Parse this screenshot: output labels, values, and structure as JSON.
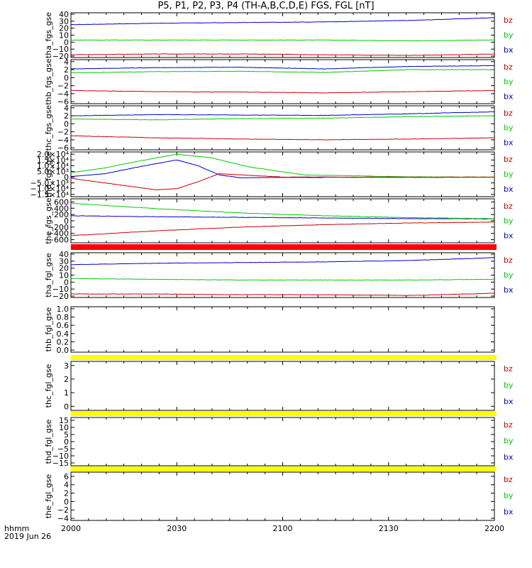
{
  "title": "P5, P1, P2, P3, P4 (TH-A,B,C,D,E) FGS, FGL [nT]",
  "x_axis": {
    "label": "hhmm",
    "date": "2019 Jun 26",
    "ticks": [
      "2000",
      "2030",
      "2100",
      "2130",
      "2200"
    ]
  },
  "colors": {
    "bz": "#cc0000",
    "by": "#00cc00",
    "bx": "#0000cc",
    "bar_red": "#ff0000",
    "bar_yellow": "#ffff00"
  },
  "chart_data": [
    {
      "type": "line",
      "ylabel": "tha_fgs_gse",
      "yticks": [
        "40",
        "30",
        "20",
        "10",
        "0",
        "−10",
        "−20"
      ],
      "yrange": [
        -22,
        42
      ],
      "legend": [
        "bz",
        "by",
        "bx"
      ],
      "series": [
        {
          "name": "bx",
          "x": [
            0,
            20,
            40,
            60,
            80,
            100
          ],
          "y": [
            25,
            27,
            28,
            29,
            31,
            35
          ]
        },
        {
          "name": "by",
          "x": [
            0,
            20,
            40,
            60,
            80,
            100
          ],
          "y": [
            3,
            3,
            3,
            3,
            2,
            3
          ]
        },
        {
          "name": "bz",
          "x": [
            0,
            20,
            40,
            60,
            80,
            100
          ],
          "y": [
            -18,
            -17,
            -17,
            -18,
            -19,
            -17
          ]
        }
      ]
    },
    {
      "type": "line",
      "ylabel": "thb_fgs_gse",
      "yticks": [
        "4",
        "2",
        "0",
        "−2",
        "−4",
        "−6"
      ],
      "yrange": [
        -6.5,
        4.5
      ],
      "legend": [
        "bz",
        "by",
        "bx"
      ],
      "series": [
        {
          "name": "bx",
          "x": [
            0,
            20,
            40,
            60,
            80,
            100
          ],
          "y": [
            2.2,
            2.5,
            2.6,
            2.2,
            2.8,
            3.0
          ]
        },
        {
          "name": "by",
          "x": [
            0,
            20,
            40,
            60,
            80,
            100
          ],
          "y": [
            1.2,
            1.5,
            1.6,
            1.3,
            2.0,
            2.0
          ]
        },
        {
          "name": "bz",
          "x": [
            0,
            20,
            40,
            60,
            80,
            100
          ],
          "y": [
            -3.2,
            -3.5,
            -3.6,
            -3.8,
            -3.5,
            -3.2
          ]
        }
      ]
    },
    {
      "type": "line",
      "ylabel": "thc_fgs_gse",
      "yticks": [
        "4",
        "2",
        "0",
        "−2",
        "−4",
        "−6"
      ],
      "yrange": [
        -6.5,
        4.5
      ],
      "legend": [
        "bz",
        "by",
        "bx"
      ],
      "series": [
        {
          "name": "bx",
          "x": [
            0,
            20,
            40,
            60,
            80,
            100
          ],
          "y": [
            2.0,
            2.3,
            2.2,
            2.1,
            2.5,
            3.0
          ]
        },
        {
          "name": "by",
          "x": [
            0,
            20,
            40,
            60,
            80,
            100
          ],
          "y": [
            1.2,
            1.0,
            1.3,
            1.4,
            1.8,
            2.0
          ]
        },
        {
          "name": "bz",
          "x": [
            0,
            20,
            40,
            60,
            80,
            100
          ],
          "y": [
            -3.0,
            -3.5,
            -3.8,
            -4.0,
            -3.8,
            -3.5
          ]
        }
      ]
    },
    {
      "type": "line",
      "ylabel": "thd_fgs_gse",
      "yticks": [
        "2.0×10⁴",
        "1.5×10⁴",
        "1.0×10⁴",
        "5.0×10³",
        "0",
        "−5.0×10³",
        "−1.0×10⁴",
        "−1.5×10⁴"
      ],
      "yrange": [
        -17000,
        22000
      ],
      "legend": [
        "bz",
        "by",
        "bx"
      ],
      "series": [
        {
          "name": "bx",
          "x": [
            0,
            8,
            16,
            25,
            30,
            35,
            40,
            50,
            100
          ],
          "y": [
            600,
            3000,
            9000,
            15000,
            10000,
            2000,
            -500,
            -200,
            0
          ]
        },
        {
          "name": "by",
          "x": [
            0,
            8,
            16,
            25,
            33,
            42,
            55,
            80,
            100
          ],
          "y": [
            4000,
            8000,
            14000,
            20000,
            17000,
            9000,
            2000,
            300,
            100
          ]
        },
        {
          "name": "bz",
          "x": [
            0,
            10,
            20,
            25,
            30,
            35,
            40,
            50,
            100
          ],
          "y": [
            -1000,
            -6000,
            -11000,
            -10000,
            -4000,
            3000,
            2000,
            100,
            0
          ]
        }
      ]
    },
    {
      "type": "line",
      "ylabel": "the_fgs_gse",
      "yticks": [
        "600",
        "400",
        "200",
        "0",
        "−200",
        "−400",
        "−600"
      ],
      "yrange": [
        -700,
        700
      ],
      "legend": [
        "bz",
        "by",
        "bx"
      ],
      "series": [
        {
          "name": "bx",
          "x": [
            0,
            20,
            40,
            60,
            80,
            100
          ],
          "y": [
            160,
            130,
            110,
            90,
            70,
            60
          ]
        },
        {
          "name": "by",
          "x": [
            0,
            20,
            40,
            60,
            80,
            100
          ],
          "y": [
            560,
            390,
            250,
            160,
            100,
            70
          ]
        },
        {
          "name": "bz",
          "x": [
            0,
            20,
            40,
            60,
            80,
            100
          ],
          "y": [
            -470,
            -320,
            -200,
            -120,
            -70,
            -40
          ]
        }
      ]
    },
    {
      "type": "line",
      "ylabel": "tha_fgl_gse",
      "yticks": [
        "40",
        "30",
        "20",
        "10",
        "0",
        "−10",
        "−20"
      ],
      "yrange": [
        -22,
        42
      ],
      "legend": [
        "bz",
        "by",
        "bx"
      ],
      "series": [
        {
          "name": "bx",
          "x": [
            0,
            20,
            40,
            60,
            80,
            100
          ],
          "y": [
            25,
            27,
            28,
            29,
            31,
            35
          ]
        },
        {
          "name": "by",
          "x": [
            0,
            20,
            40,
            60,
            80,
            100
          ],
          "y": [
            5,
            4,
            3,
            3,
            3,
            4
          ]
        },
        {
          "name": "bz",
          "x": [
            0,
            20,
            40,
            60,
            80,
            100
          ],
          "y": [
            -17,
            -17,
            -18,
            -18,
            -19,
            -16
          ]
        }
      ]
    },
    {
      "type": "line",
      "ylabel": "thb_fgl_gse",
      "yticks": [
        "1.0",
        "0.8",
        "0.6",
        "0.4",
        "0.2",
        "0.0"
      ],
      "yrange": [
        -0.05,
        1.05
      ],
      "legend": [],
      "series": []
    },
    {
      "type": "line",
      "ylabel": "thc_fgl_gse",
      "yticks": [
        "3",
        "2",
        "1",
        "0"
      ],
      "yrange": [
        -0.3,
        3.3
      ],
      "legend": [
        "bz",
        "by",
        "bx"
      ],
      "series": []
    },
    {
      "type": "line",
      "ylabel": "thd_fgl_gse",
      "yticks": [
        "15",
        "10",
        "5",
        "0",
        "−5",
        "−10",
        "−15"
      ],
      "yrange": [
        -17,
        17
      ],
      "legend": [
        "bz",
        "by",
        "bx"
      ],
      "series": []
    },
    {
      "type": "line",
      "ylabel": "the_fgl_gse",
      "yticks": [
        "6",
        "4",
        "2",
        "0",
        "−2",
        "−4"
      ],
      "yrange": [
        -4.5,
        7
      ],
      "legend": [
        "bz",
        "by",
        "bx"
      ],
      "series": []
    }
  ]
}
